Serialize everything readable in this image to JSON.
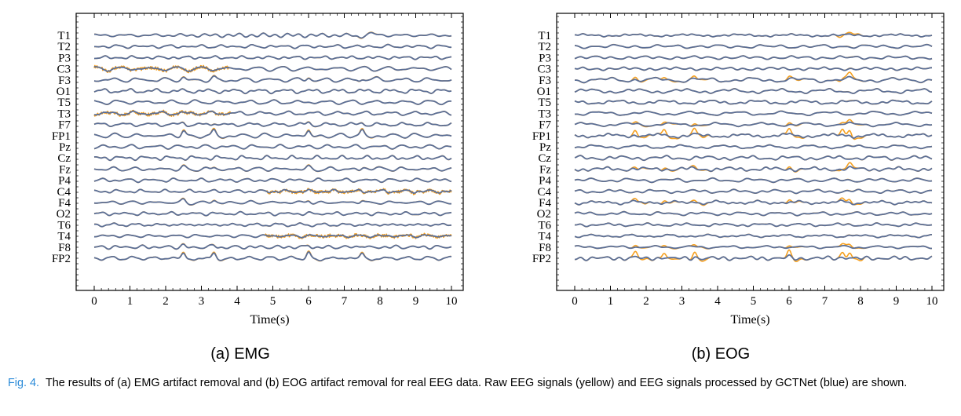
{
  "figure": {
    "caption_label": "Fig. 4.",
    "caption_text": "The results of (a) EMG artifact removal and (b) EOG artifact removal for real EEG data. Raw EEG signals (yellow) and EEG signals processed by GCTNet (blue) are shown."
  },
  "colors": {
    "raw": "#F5A020",
    "processed": "#5A6E96",
    "caption_label": "#2a8ad8"
  },
  "chart_data": [
    {
      "type": "line",
      "panel": "a",
      "sublabel": "(a) EMG",
      "xlabel": "Time(s)",
      "xlim": [
        0,
        10
      ],
      "xticks": [
        0,
        1,
        2,
        3,
        4,
        5,
        6,
        7,
        8,
        9,
        10
      ],
      "channels": [
        "T1",
        "T2",
        "P3",
        "C3",
        "F3",
        "O1",
        "T5",
        "T3",
        "F7",
        "FP1",
        "Pz",
        "Cz",
        "Fz",
        "P4",
        "C4",
        "F4",
        "O2",
        "T6",
        "T4",
        "F8",
        "FP2"
      ],
      "series": [
        {
          "name": "Raw EEG",
          "color": "#F5A020"
        },
        {
          "name": "GCTNet",
          "color": "#5A6E96"
        }
      ],
      "artifact_segments": [
        {
          "channel": "C3",
          "t_start": 0,
          "t_end": 3.8
        },
        {
          "channel": "T3",
          "t_start": 0,
          "t_end": 3.8
        },
        {
          "channel": "C4",
          "t_start": 4.8,
          "t_end": 10
        },
        {
          "channel": "T4",
          "t_start": 4.8,
          "t_end": 10
        }
      ],
      "blink_times": [
        2.5,
        3.35,
        6.0,
        7.5
      ]
    },
    {
      "type": "line",
      "panel": "b",
      "sublabel": "(b) EOG",
      "xlabel": "Time(s)",
      "xlim": [
        0,
        10
      ],
      "xticks": [
        0,
        1,
        2,
        3,
        4,
        5,
        6,
        7,
        8,
        9,
        10
      ],
      "channels": [
        "T1",
        "T2",
        "P3",
        "C3",
        "F3",
        "O1",
        "T5",
        "T3",
        "F7",
        "FP1",
        "Pz",
        "Cz",
        "Fz",
        "P4",
        "C4",
        "F4",
        "O2",
        "T6",
        "T4",
        "F8",
        "FP2"
      ],
      "series": [
        {
          "name": "Raw EEG",
          "color": "#F5A020"
        },
        {
          "name": "GCTNet",
          "color": "#5A6E96"
        }
      ],
      "artifact_segments": [],
      "blink_times": [
        1.7,
        2.5,
        3.35,
        6.0,
        7.5,
        7.7
      ]
    }
  ]
}
